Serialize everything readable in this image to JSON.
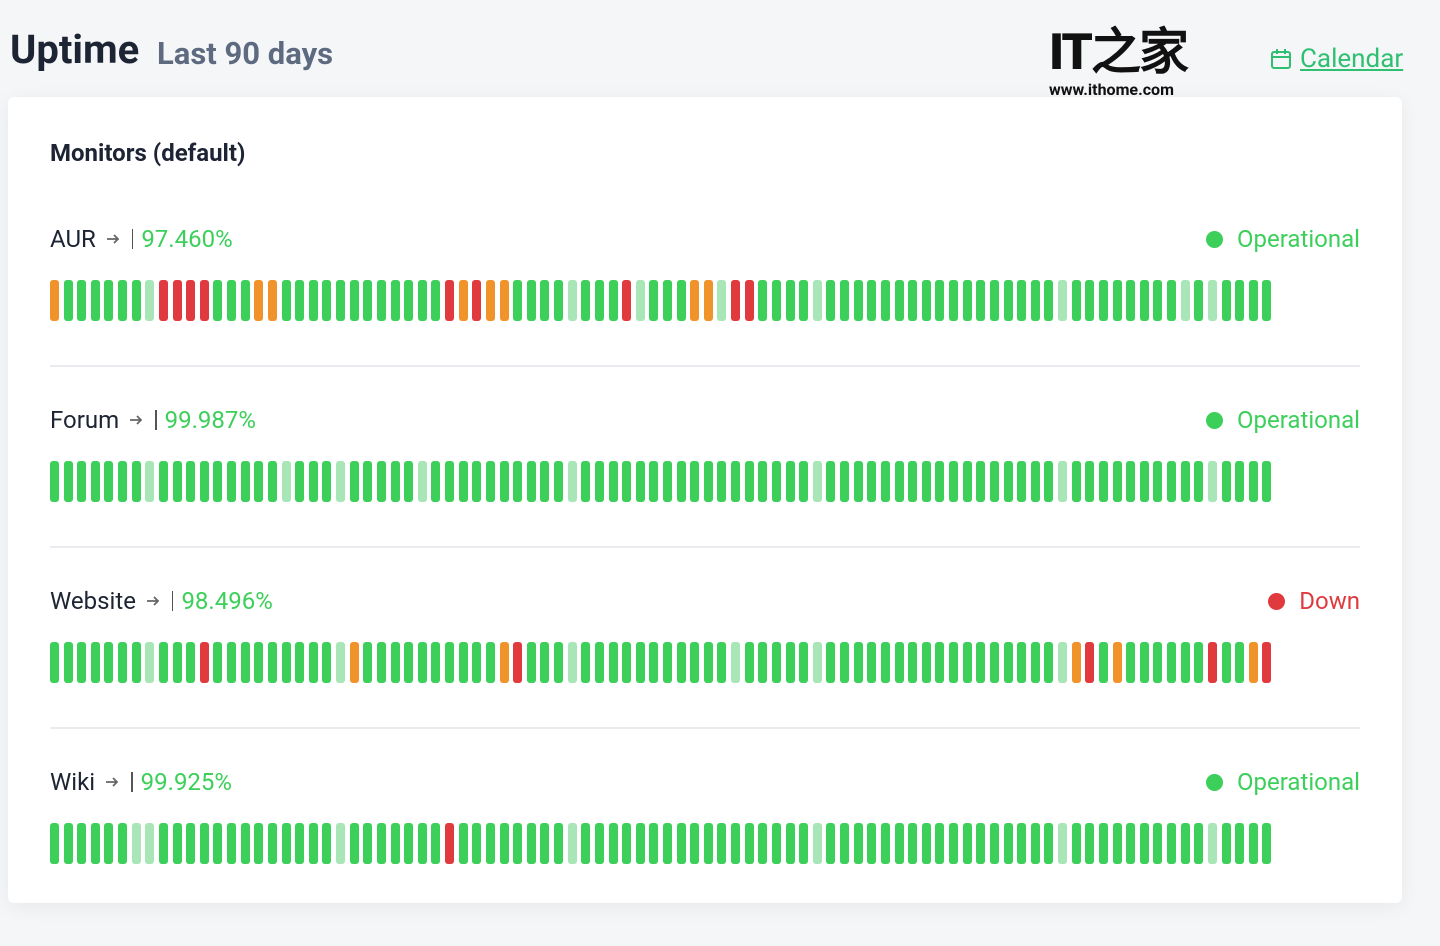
{
  "header": {
    "title": "Uptime",
    "subtitle": "Last 90 days",
    "calendar_link": "Calendar"
  },
  "watermark": {
    "logo": "IT之家",
    "url": "www.ithome.com"
  },
  "section": {
    "title": "Monitors (default)",
    "monitors": [
      {
        "name": "AUR",
        "uptime": "97.460%",
        "status": "Operational",
        "status_color": "#3ccf5a",
        "days": [
          "#f0932b",
          "#3ccf5a",
          "#3ccf5a",
          "#3ccf5a",
          "#3ccf5a",
          "#3ccf5a",
          "#3ccf5a",
          "#a8e6b8",
          "#e03a3e",
          "#e03a3e",
          "#e03a3e",
          "#e03a3e",
          "#3ccf5a",
          "#3ccf5a",
          "#3ccf5a",
          "#f0932b",
          "#f0932b",
          "#3ccf5a",
          "#3ccf5a",
          "#3ccf5a",
          "#3ccf5a",
          "#3ccf5a",
          "#3ccf5a",
          "#3ccf5a",
          "#3ccf5a",
          "#3ccf5a",
          "#3ccf5a",
          "#3ccf5a",
          "#3ccf5a",
          "#e03a3e",
          "#f0932b",
          "#e03a3e",
          "#f0932b",
          "#f0932b",
          "#3ccf5a",
          "#3ccf5a",
          "#3ccf5a",
          "#3ccf5a",
          "#a8e6b8",
          "#3ccf5a",
          "#3ccf5a",
          "#3ccf5a",
          "#e03a3e",
          "#a8e6b8",
          "#3ccf5a",
          "#3ccf5a",
          "#3ccf5a",
          "#f0932b",
          "#f0932b",
          "#a8e6b8",
          "#e03a3e",
          "#e03a3e",
          "#3ccf5a",
          "#3ccf5a",
          "#3ccf5a",
          "#3ccf5a",
          "#a8e6b8",
          "#3ccf5a",
          "#3ccf5a",
          "#3ccf5a",
          "#3ccf5a",
          "#3ccf5a",
          "#3ccf5a",
          "#3ccf5a",
          "#3ccf5a",
          "#3ccf5a",
          "#3ccf5a",
          "#3ccf5a",
          "#3ccf5a",
          "#3ccf5a",
          "#3ccf5a",
          "#3ccf5a",
          "#3ccf5a",
          "#3ccf5a",
          "#a8e6b8",
          "#3ccf5a",
          "#3ccf5a",
          "#3ccf5a",
          "#3ccf5a",
          "#3ccf5a",
          "#3ccf5a",
          "#3ccf5a",
          "#3ccf5a",
          "#a8e6b8",
          "#3ccf5a",
          "#a8e6b8",
          "#3ccf5a",
          "#3ccf5a",
          "#3ccf5a",
          "#3ccf5a"
        ]
      },
      {
        "name": "Forum",
        "uptime": "99.987%",
        "status": "Operational",
        "status_color": "#3ccf5a",
        "days": [
          "#3ccf5a",
          "#3ccf5a",
          "#3ccf5a",
          "#3ccf5a",
          "#3ccf5a",
          "#3ccf5a",
          "#3ccf5a",
          "#a8e6b8",
          "#3ccf5a",
          "#3ccf5a",
          "#3ccf5a",
          "#3ccf5a",
          "#3ccf5a",
          "#3ccf5a",
          "#3ccf5a",
          "#3ccf5a",
          "#3ccf5a",
          "#a8e6b8",
          "#3ccf5a",
          "#3ccf5a",
          "#3ccf5a",
          "#a8e6b8",
          "#3ccf5a",
          "#3ccf5a",
          "#3ccf5a",
          "#3ccf5a",
          "#3ccf5a",
          "#a8e6b8",
          "#3ccf5a",
          "#3ccf5a",
          "#3ccf5a",
          "#3ccf5a",
          "#3ccf5a",
          "#3ccf5a",
          "#3ccf5a",
          "#3ccf5a",
          "#3ccf5a",
          "#3ccf5a",
          "#a8e6b8",
          "#3ccf5a",
          "#3ccf5a",
          "#3ccf5a",
          "#3ccf5a",
          "#3ccf5a",
          "#3ccf5a",
          "#3ccf5a",
          "#3ccf5a",
          "#3ccf5a",
          "#3ccf5a",
          "#3ccf5a",
          "#3ccf5a",
          "#3ccf5a",
          "#3ccf5a",
          "#3ccf5a",
          "#3ccf5a",
          "#3ccf5a",
          "#a8e6b8",
          "#3ccf5a",
          "#3ccf5a",
          "#3ccf5a",
          "#3ccf5a",
          "#3ccf5a",
          "#3ccf5a",
          "#3ccf5a",
          "#3ccf5a",
          "#3ccf5a",
          "#3ccf5a",
          "#3ccf5a",
          "#3ccf5a",
          "#3ccf5a",
          "#3ccf5a",
          "#3ccf5a",
          "#3ccf5a",
          "#3ccf5a",
          "#a8e6b8",
          "#3ccf5a",
          "#3ccf5a",
          "#3ccf5a",
          "#3ccf5a",
          "#3ccf5a",
          "#3ccf5a",
          "#3ccf5a",
          "#3ccf5a",
          "#3ccf5a",
          "#3ccf5a",
          "#a8e6b8",
          "#3ccf5a",
          "#3ccf5a",
          "#3ccf5a",
          "#3ccf5a"
        ]
      },
      {
        "name": "Website",
        "uptime": "98.496%",
        "status": "Down",
        "status_color": "#e03a3e",
        "days": [
          "#3ccf5a",
          "#3ccf5a",
          "#3ccf5a",
          "#3ccf5a",
          "#3ccf5a",
          "#3ccf5a",
          "#3ccf5a",
          "#a8e6b8",
          "#3ccf5a",
          "#3ccf5a",
          "#3ccf5a",
          "#e03a3e",
          "#3ccf5a",
          "#3ccf5a",
          "#3ccf5a",
          "#3ccf5a",
          "#3ccf5a",
          "#3ccf5a",
          "#3ccf5a",
          "#3ccf5a",
          "#3ccf5a",
          "#a8e6b8",
          "#f0932b",
          "#3ccf5a",
          "#3ccf5a",
          "#3ccf5a",
          "#3ccf5a",
          "#3ccf5a",
          "#3ccf5a",
          "#3ccf5a",
          "#3ccf5a",
          "#3ccf5a",
          "#3ccf5a",
          "#f0932b",
          "#e03a3e",
          "#3ccf5a",
          "#3ccf5a",
          "#3ccf5a",
          "#a8e6b8",
          "#3ccf5a",
          "#3ccf5a",
          "#3ccf5a",
          "#3ccf5a",
          "#3ccf5a",
          "#3ccf5a",
          "#3ccf5a",
          "#3ccf5a",
          "#3ccf5a",
          "#3ccf5a",
          "#3ccf5a",
          "#a8e6b8",
          "#3ccf5a",
          "#3ccf5a",
          "#3ccf5a",
          "#3ccf5a",
          "#3ccf5a",
          "#a8e6b8",
          "#3ccf5a",
          "#3ccf5a",
          "#3ccf5a",
          "#3ccf5a",
          "#3ccf5a",
          "#3ccf5a",
          "#3ccf5a",
          "#3ccf5a",
          "#3ccf5a",
          "#3ccf5a",
          "#3ccf5a",
          "#3ccf5a",
          "#3ccf5a",
          "#3ccf5a",
          "#3ccf5a",
          "#3ccf5a",
          "#3ccf5a",
          "#a8e6b8",
          "#f0932b",
          "#e03a3e",
          "#3ccf5a",
          "#f0932b",
          "#3ccf5a",
          "#3ccf5a",
          "#3ccf5a",
          "#3ccf5a",
          "#3ccf5a",
          "#3ccf5a",
          "#e03a3e",
          "#3ccf5a",
          "#3ccf5a",
          "#f0932b",
          "#e03a3e"
        ]
      },
      {
        "name": "Wiki",
        "uptime": "99.925%",
        "status": "Operational",
        "status_color": "#3ccf5a",
        "days": [
          "#3ccf5a",
          "#3ccf5a",
          "#3ccf5a",
          "#3ccf5a",
          "#3ccf5a",
          "#3ccf5a",
          "#a8e6b8",
          "#a8e6b8",
          "#3ccf5a",
          "#3ccf5a",
          "#3ccf5a",
          "#3ccf5a",
          "#3ccf5a",
          "#3ccf5a",
          "#3ccf5a",
          "#3ccf5a",
          "#3ccf5a",
          "#3ccf5a",
          "#3ccf5a",
          "#3ccf5a",
          "#3ccf5a",
          "#a8e6b8",
          "#3ccf5a",
          "#3ccf5a",
          "#3ccf5a",
          "#3ccf5a",
          "#3ccf5a",
          "#3ccf5a",
          "#3ccf5a",
          "#e03a3e",
          "#3ccf5a",
          "#3ccf5a",
          "#3ccf5a",
          "#3ccf5a",
          "#3ccf5a",
          "#3ccf5a",
          "#3ccf5a",
          "#3ccf5a",
          "#a8e6b8",
          "#3ccf5a",
          "#3ccf5a",
          "#3ccf5a",
          "#3ccf5a",
          "#3ccf5a",
          "#3ccf5a",
          "#3ccf5a",
          "#3ccf5a",
          "#3ccf5a",
          "#3ccf5a",
          "#3ccf5a",
          "#3ccf5a",
          "#3ccf5a",
          "#3ccf5a",
          "#3ccf5a",
          "#3ccf5a",
          "#3ccf5a",
          "#a8e6b8",
          "#3ccf5a",
          "#3ccf5a",
          "#3ccf5a",
          "#3ccf5a",
          "#3ccf5a",
          "#3ccf5a",
          "#3ccf5a",
          "#3ccf5a",
          "#3ccf5a",
          "#3ccf5a",
          "#3ccf5a",
          "#3ccf5a",
          "#3ccf5a",
          "#3ccf5a",
          "#3ccf5a",
          "#3ccf5a",
          "#3ccf5a",
          "#a8e6b8",
          "#3ccf5a",
          "#3ccf5a",
          "#3ccf5a",
          "#3ccf5a",
          "#3ccf5a",
          "#3ccf5a",
          "#3ccf5a",
          "#3ccf5a",
          "#3ccf5a",
          "#3ccf5a",
          "#a8e6b8",
          "#3ccf5a",
          "#3ccf5a",
          "#3ccf5a",
          "#3ccf5a"
        ]
      }
    ]
  }
}
